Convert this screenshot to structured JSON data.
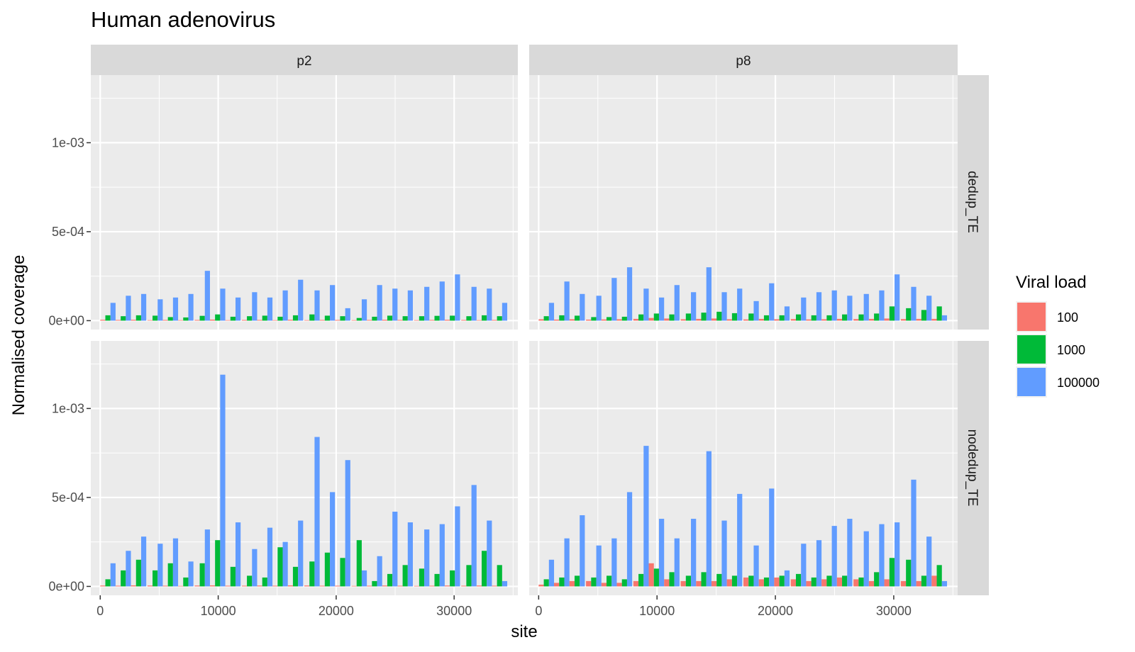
{
  "chart_data": {
    "type": "bar",
    "title": "Human adenovirus",
    "xlabel": "site",
    "ylabel": "Normalised coverage",
    "xlim": [
      -800,
      35400
    ],
    "ylim": [
      -5e-05,
      0.00138
    ],
    "x_ticks": [
      0,
      10000,
      20000,
      30000
    ],
    "x_tick_labels": [
      "0",
      "10000",
      "20000",
      "30000"
    ],
    "y_ticks": [
      0,
      0.0005,
      0.001
    ],
    "y_tick_labels": [
      "0e+00",
      "5e-04",
      "1e-03"
    ],
    "facet_columns": [
      "p2",
      "p8"
    ],
    "facet_rows": [
      "dedup_TE",
      "nodedup_TE"
    ],
    "legend": {
      "title": "Viral load",
      "position": "right",
      "entries": [
        {
          "label": "100",
          "color": "#F8766D"
        },
        {
          "label": "1000",
          "color": "#00BA38"
        },
        {
          "label": "100000",
          "color": "#619CFF"
        }
      ]
    },
    "grid": true,
    "bin_starts": [
      0,
      1300,
      2600,
      4000,
      5300,
      6600,
      8000,
      9300,
      10600,
      12000,
      13300,
      14600,
      15900,
      17300,
      18600,
      19900,
      21300,
      22600,
      23900,
      25200,
      26600,
      27900,
      29200,
      30600,
      31900,
      33200
    ],
    "bin_width": 1300,
    "panels": [
      {
        "facet_column": "p2",
        "facet_row": "dedup_TE",
        "series": [
          {
            "name": "100",
            "values": [
              5e-06,
              4e-06,
              5e-06,
              3e-06,
              4e-06,
              3e-06,
              4e-06,
              6e-06,
              3e-06,
              4e-06,
              4e-06,
              3e-06,
              5e-06,
              3e-06,
              4e-06,
              4e-06,
              3e-06,
              4e-06,
              5e-06,
              4e-06,
              3e-06,
              4e-06,
              5e-06,
              4e-06,
              3e-06,
              4e-06
            ]
          },
          {
            "name": "1000",
            "values": [
              3e-05,
              2.5e-05,
              3e-05,
              2.8e-05,
              2e-05,
              1.8e-05,
              2.7e-05,
              3.5e-05,
              2.2e-05,
              2.5e-05,
              2.8e-05,
              2.2e-05,
              3e-05,
              3.5e-05,
              2.8e-05,
              2.5e-05,
              1.5e-05,
              2.2e-05,
              2.8e-05,
              2.5e-05,
              2.5e-05,
              2.7e-05,
              2.8e-05,
              2.5e-05,
              3e-05,
              2.5e-05
            ]
          },
          {
            "name": "100000",
            "values": [
              0.0001,
              0.00014,
              0.00015,
              0.00012,
              0.00013,
              0.00015,
              0.00028,
              0.00018,
              0.00013,
              0.00016,
              0.00013,
              0.00017,
              0.00023,
              0.00017,
              0.0002,
              7e-05,
              0.00012,
              0.0002,
              0.00018,
              0.00017,
              0.00019,
              0.00022,
              0.00026,
              0.00019,
              0.00018,
              0.0001
            ]
          }
        ]
      },
      {
        "facet_column": "p8",
        "facet_row": "dedup_TE",
        "series": [
          {
            "name": "100",
            "values": [
              8e-06,
              6e-06,
              8e-06,
              6e-06,
              7e-06,
              8e-06,
              1e-05,
              1.5e-05,
              1.2e-05,
              8e-06,
              1e-05,
              1.2e-05,
              8e-06,
              7e-06,
              1e-05,
              8e-06,
              9e-06,
              7e-06,
              8e-06,
              1e-05,
              9e-06,
              1e-05,
              1.2e-05,
              9e-06,
              1e-05,
              1e-05
            ]
          },
          {
            "name": "1000",
            "values": [
              2.5e-05,
              3e-05,
              2.8e-05,
              2e-05,
              2e-05,
              2.2e-05,
              3.5e-05,
              4e-05,
              3.5e-05,
              4e-05,
              4.5e-05,
              5e-05,
              4.2e-05,
              4e-05,
              3e-05,
              3e-05,
              3.5e-05,
              3e-05,
              3e-05,
              3.5e-05,
              3.5e-05,
              4e-05,
              8e-05,
              7e-05,
              6e-05,
              8e-05
            ]
          },
          {
            "name": "100000",
            "values": [
              0.0001,
              0.00022,
              0.00015,
              0.00014,
              0.00024,
              0.0003,
              0.00018,
              0.00013,
              0.0002,
              0.00016,
              0.0003,
              0.00016,
              0.00018,
              0.00011,
              0.00021,
              8e-05,
              0.00013,
              0.00016,
              0.00017,
              0.00014,
              0.00015,
              0.00017,
              0.00026,
              0.00019,
              0.00014,
              3e-05
            ]
          }
        ]
      },
      {
        "facet_column": "p2",
        "facet_row": "nodedup_TE",
        "series": [
          {
            "name": "100",
            "values": [
              5e-06,
              4e-06,
              6e-06,
              5e-06,
              4e-06,
              3e-06,
              5e-06,
              6e-06,
              4e-06,
              4e-06,
              5e-06,
              4e-06,
              6e-06,
              5e-06,
              4e-06,
              4e-06,
              3e-06,
              4e-06,
              5e-06,
              4e-06,
              3e-06,
              4e-06,
              5e-06,
              4e-06,
              5e-06,
              4e-06
            ]
          },
          {
            "name": "1000",
            "values": [
              4e-05,
              9e-05,
              0.00015,
              9e-05,
              0.00013,
              5e-05,
              0.00013,
              0.00026,
              0.00011,
              6e-05,
              5e-05,
              0.00022,
              0.00011,
              0.00014,
              0.00019,
              0.00016,
              0.00026,
              3e-05,
              7e-05,
              0.00012,
              0.0001,
              7e-05,
              9e-05,
              0.00012,
              0.0002,
              0.00012
            ]
          },
          {
            "name": "100000",
            "values": [
              0.00013,
              0.0002,
              0.00028,
              0.00024,
              0.00027,
              0.00014,
              0.00032,
              0.00119,
              0.00036,
              0.00021,
              0.00033,
              0.00025,
              0.00037,
              0.00084,
              0.00053,
              0.00071,
              9e-05,
              0.00017,
              0.00042,
              0.00036,
              0.00032,
              0.00035,
              0.00045,
              0.00057,
              0.00037,
              3e-05
            ]
          }
        ]
      },
      {
        "facet_column": "p8",
        "facet_row": "nodedup_TE",
        "series": [
          {
            "name": "100",
            "values": [
              1e-05,
              2e-05,
              3e-05,
              3e-05,
              2e-05,
              2e-05,
              3e-05,
              0.00013,
              4e-05,
              3e-05,
              3e-05,
              3e-05,
              4e-05,
              5e-05,
              4e-05,
              5e-05,
              4e-05,
              3e-05,
              4e-05,
              5e-05,
              4e-05,
              3e-05,
              4e-05,
              3e-05,
              3e-05,
              6e-05
            ]
          },
          {
            "name": "1000",
            "values": [
              4e-05,
              5e-05,
              6e-05,
              5e-05,
              6e-05,
              4e-05,
              7e-05,
              0.0001,
              8e-05,
              6e-05,
              8e-05,
              7e-05,
              6e-05,
              6e-05,
              5e-05,
              6e-05,
              7e-05,
              5e-05,
              6e-05,
              6e-05,
              5e-05,
              8e-05,
              0.00016,
              0.00015,
              6e-05,
              0.00012
            ]
          },
          {
            "name": "100000",
            "values": [
              0.00015,
              0.00027,
              0.0004,
              0.00023,
              0.00027,
              0.00053,
              0.00079,
              0.00038,
              0.00027,
              0.00038,
              0.00076,
              0.00037,
              0.00052,
              0.00023,
              0.00055,
              9e-05,
              0.00024,
              0.00026,
              0.00034,
              0.00038,
              0.00031,
              0.00035,
              0.00036,
              0.0006,
              0.00028,
              3e-05
            ]
          }
        ]
      }
    ]
  }
}
